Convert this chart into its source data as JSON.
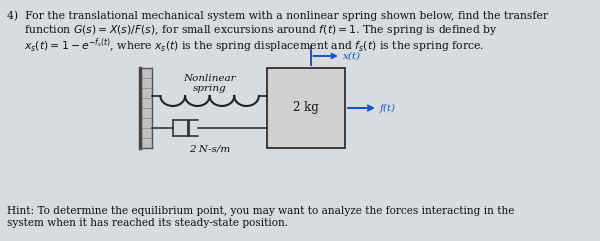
{
  "bg_color": "#d8dce0",
  "text_color": "#111111",
  "hint_text": "Hint: To determine the equilibrium point, you may want to analyze the forces interacting in the\nsystem when it has reached its steady-state position.",
  "nonlinear_spring_label": "Nonlinear\nspring",
  "mass_label": "2 kg",
  "damper_label": "2 N-s/m",
  "xt_label": "x(t)",
  "ft_label": "f(t)",
  "wall_fill": "#c0c0c0",
  "wall_hatch_color": "#888888",
  "spring_color": "#222222",
  "mass_fill": "#d0d0d0",
  "mass_edge_color": "#222222",
  "damper_color": "#333333",
  "arrow_color": "#1155cc",
  "font_size_body": 7.8,
  "font_size_diagram": 7.5,
  "font_size_hint": 7.6
}
